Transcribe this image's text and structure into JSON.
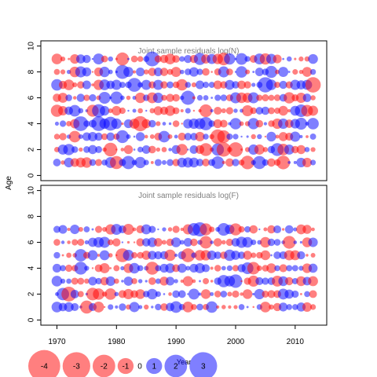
{
  "chart_data": {
    "type": "scatter",
    "title": "",
    "ylabel": "Age",
    "xlabel": "Year",
    "x_ticks": [
      1970,
      1980,
      1990,
      2000,
      2010
    ],
    "y_ticks": [
      0,
      2,
      4,
      6,
      8,
      10
    ],
    "x_range": [
      1967.3,
      2015.3
    ],
    "y_range": [
      -0.4,
      10.4
    ],
    "colors": {
      "positive": "#0000ff",
      "negative": "#ff0000"
    },
    "symbol_scale": "area proportional to |residual|, estimated",
    "panels": [
      {
        "id": "N",
        "title": "Joint sample residuals log(N)",
        "years": [
          1970,
          2013
        ],
        "ages": [
          1,
          2,
          3,
          4,
          5,
          6,
          7,
          8,
          9
        ],
        "seed": 17
      },
      {
        "id": "F",
        "title": "Joint sample residuals log(F)",
        "years": [
          1970,
          2013
        ],
        "ages": [
          1,
          2,
          3,
          4,
          5,
          6,
          7
        ],
        "seed": 42
      }
    ],
    "legend": {
      "placement": "bottom-left",
      "items": [
        {
          "label": "-4",
          "value": -4
        },
        {
          "label": "-3",
          "value": -3
        },
        {
          "label": "-2",
          "value": -2
        },
        {
          "label": "-1",
          "value": -1
        },
        {
          "label": "0",
          "value": 0
        },
        {
          "label": "1",
          "value": 1
        },
        {
          "label": "2",
          "value": 2
        },
        {
          "label": "3",
          "value": 3
        }
      ]
    }
  }
}
